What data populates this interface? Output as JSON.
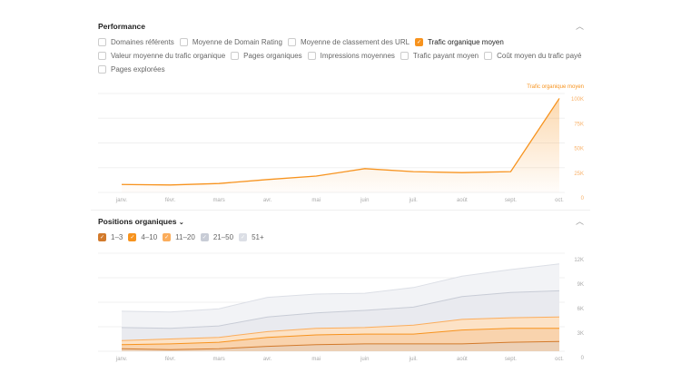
{
  "performance": {
    "title": "Performance",
    "metrics": [
      {
        "label": "Domaines référents",
        "checked": false
      },
      {
        "label": "Moyenne de Domain Rating",
        "checked": false
      },
      {
        "label": "Moyenne de classement des URL",
        "checked": false
      },
      {
        "label": "Trafic organique moyen",
        "checked": true
      },
      {
        "label": "Valeur moyenne du trafic organique",
        "checked": false
      },
      {
        "label": "Pages organiques",
        "checked": false
      },
      {
        "label": "Impressions moyennes",
        "checked": false
      },
      {
        "label": "Trafic payant moyen",
        "checked": false
      },
      {
        "label": "Coût moyen du trafic payé",
        "checked": false
      },
      {
        "label": "Pages explorées",
        "checked": false
      }
    ]
  },
  "positions": {
    "title": "Positions organiques",
    "legend": [
      {
        "label": "1–3",
        "color": "#d27a2c"
      },
      {
        "label": "4–10",
        "color": "#f7931e"
      },
      {
        "label": "11–20",
        "color": "#fbad5c"
      },
      {
        "label": "21–50",
        "color": "#c8ccd6"
      },
      {
        "label": "51+",
        "color": "#dcdfe6"
      }
    ]
  },
  "chart_data": [
    {
      "type": "area",
      "series": [
        {
          "name": "Trafic organique moyen",
          "color": "#f7931e",
          "values": [
            8000,
            7500,
            9000,
            13000,
            16500,
            24000,
            21000,
            20000,
            21000,
            95000
          ]
        }
      ],
      "categories": [
        "janv.",
        "févr.",
        "mars",
        "avr.",
        "mai",
        "juin",
        "juil.",
        "août",
        "sept.",
        "oct."
      ],
      "yticks": [
        "0",
        "25K",
        "50K",
        "75K",
        "100K"
      ],
      "ylim": [
        0,
        100000
      ],
      "grid": true,
      "legend": "top-right"
    },
    {
      "type": "area",
      "stacked": true,
      "categories": [
        "janv.",
        "févr.",
        "mars",
        "avr.",
        "mai",
        "juin",
        "juil.",
        "août",
        "sept.",
        "oct."
      ],
      "series": [
        {
          "name": "1–3",
          "color": "#d27a2c",
          "fill": "#ecd0b6",
          "values": [
            300,
            200,
            300,
            600,
            800,
            900,
            900,
            900,
            1100,
            1200
          ]
        },
        {
          "name": "4–10",
          "color": "#f7931e",
          "fill": "#f9d3ad",
          "values": [
            500,
            700,
            800,
            1100,
            1200,
            1200,
            1200,
            1700,
            1700,
            1600
          ]
        },
        {
          "name": "11–20",
          "color": "#fbad5c",
          "fill": "#fce2c6",
          "values": [
            500,
            600,
            600,
            700,
            800,
            800,
            1100,
            1300,
            1300,
            1400
          ]
        },
        {
          "name": "21–50",
          "color": "#c8ccd6",
          "fill": "#e9eaef",
          "values": [
            1600,
            1300,
            1400,
            1800,
            1900,
            2100,
            2200,
            2800,
            3100,
            3200
          ]
        },
        {
          "name": "51+",
          "color": "#dcdfe6",
          "fill": "#f2f3f6",
          "values": [
            2000,
            2000,
            2100,
            2400,
            2300,
            2100,
            2400,
            2500,
            2800,
            3300
          ]
        }
      ],
      "yticks": [
        "0",
        "3K",
        "6K",
        "9K",
        "12K"
      ],
      "ylim": [
        0,
        12000
      ],
      "grid": true
    }
  ]
}
